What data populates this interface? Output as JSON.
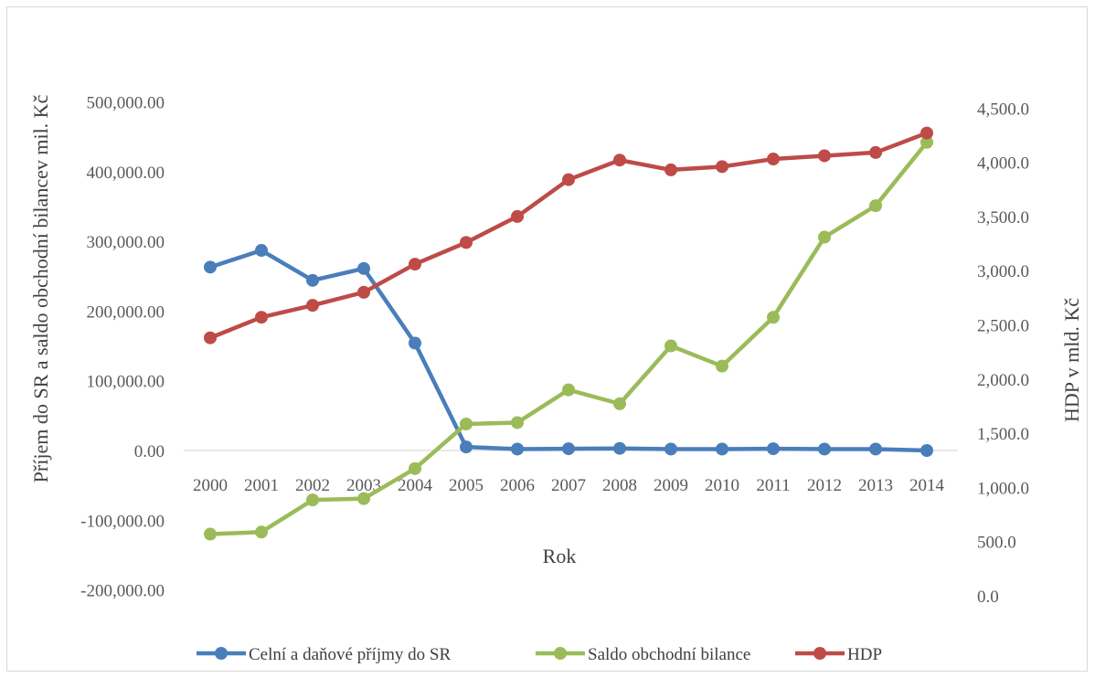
{
  "chart_data": {
    "type": "line",
    "title": "",
    "xlabel": "Rok",
    "ylabel_left": "Příjem do SR a saldo obchodní bilancev mil. Kč",
    "ylabel_right": "HDP v mld. Kč",
    "categories": [
      "2000",
      "2001",
      "2002",
      "2003",
      "2004",
      "2005",
      "2006",
      "2007",
      "2008",
      "2009",
      "2010",
      "2011",
      "2012",
      "2013",
      "2014"
    ],
    "y_left": {
      "min": -200000,
      "max": 500000,
      "step": 100000,
      "ticks": [
        "-200,000.00",
        "-100,000.00",
        "0.00",
        "100,000.00",
        "200,000.00",
        "300,000.00",
        "400,000.00",
        "500,000.00"
      ]
    },
    "y_right": {
      "min": 0,
      "max": 4500,
      "step": 500,
      "ticks": [
        "0.0",
        "500.0",
        "1,000.0",
        "1,500.0",
        "2,000.0",
        "2,500.0",
        "3,000.0",
        "3,500.0",
        "4,000.0",
        "4,500.0"
      ]
    },
    "series": [
      {
        "name": "Celní a daňové příjmy do SR",
        "axis": "left",
        "color": "#4a7ebb",
        "values": [
          263000,
          287000,
          244000,
          261000,
          154000,
          5000,
          2000,
          2500,
          3000,
          2000,
          2000,
          2500,
          2000,
          2000,
          0
        ]
      },
      {
        "name": "Saldo obchodní bilance",
        "axis": "left",
        "color": "#9bbb59",
        "values": [
          -120000,
          -117000,
          -71000,
          -69000,
          -26000,
          38000,
          40000,
          87000,
          67000,
          150000,
          121000,
          191000,
          306000,
          351000,
          442000
        ]
      },
      {
        "name": "HDP",
        "axis": "right",
        "color": "#be4b48",
        "values": [
          2380,
          2570,
          2680,
          2800,
          3060,
          3260,
          3500,
          3840,
          4020,
          3930,
          3960,
          4030,
          4060,
          4090,
          4270
        ]
      }
    ],
    "legend_position": "bottom",
    "grid": false
  }
}
